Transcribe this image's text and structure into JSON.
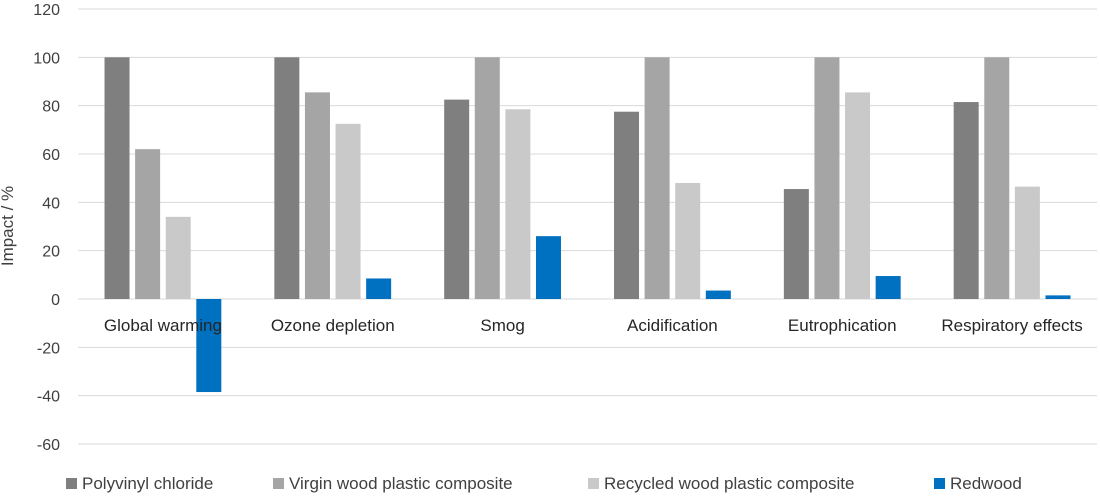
{
  "chart_data": {
    "type": "bar",
    "title": "",
    "xlabel": "",
    "ylabel": "Impact / %",
    "ylim": [
      -60,
      120
    ],
    "yticks": [
      -60,
      -40,
      -20,
      0,
      20,
      40,
      60,
      80,
      100,
      120
    ],
    "grid": true,
    "legend_position": "bottom",
    "categories": [
      "Global warming",
      "Ozone depletion",
      "Smog",
      "Acidification",
      "Eutrophication",
      "Respiratory effects"
    ],
    "series": [
      {
        "name": "Polyvinyl chloride",
        "color": "#7f7f7f",
        "values": [
          100,
          100,
          82.5,
          77.5,
          45.5,
          81.5
        ]
      },
      {
        "name": "Virgin wood plastic composite",
        "color": "#a5a5a5",
        "values": [
          62,
          85.5,
          100,
          100,
          100,
          100
        ]
      },
      {
        "name": "Recycled wood plastic composite",
        "color": "#c9c9c9",
        "values": [
          34,
          72.5,
          78.5,
          48,
          85.5,
          46.5
        ]
      },
      {
        "name": "Redwood",
        "color": "#0070c0",
        "values": [
          -38.5,
          8.5,
          26,
          3.5,
          9.5,
          1.5
        ]
      }
    ]
  }
}
